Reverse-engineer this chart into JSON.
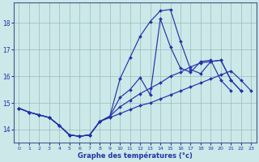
{
  "xlabel": "Graphe des températures (°c)",
  "bg_color": "#cce8e8",
  "grid_color": "#99bbbb",
  "line_color": "#2233aa",
  "xlim": [
    -0.5,
    23.5
  ],
  "ylim": [
    13.5,
    18.75
  ],
  "yticks": [
    14,
    15,
    16,
    17,
    18
  ],
  "xticks": [
    0,
    1,
    2,
    3,
    4,
    5,
    6,
    7,
    8,
    9,
    10,
    11,
    12,
    13,
    14,
    15,
    16,
    17,
    18,
    19,
    20,
    21,
    22,
    23
  ],
  "line1": [
    14.8,
    14.65,
    14.55,
    14.45,
    14.15,
    13.8,
    13.75,
    13.8,
    14.3,
    14.5,
    15.9,
    16.7,
    17.5,
    18.05,
    18.45,
    18.5,
    17.3,
    16.25,
    16.1,
    16.55,
    16.6,
    15.85,
    15.45,
    null
  ],
  "line2": [
    14.8,
    14.65,
    14.55,
    14.45,
    14.15,
    13.8,
    13.75,
    13.8,
    14.3,
    14.5,
    15.2,
    15.5,
    15.95,
    15.3,
    18.15,
    17.1,
    16.3,
    16.15,
    16.55,
    16.6,
    15.85,
    15.45,
    null,
    null
  ],
  "line3": [
    14.8,
    14.65,
    14.55,
    14.45,
    14.15,
    13.8,
    13.75,
    13.8,
    14.3,
    14.5,
    14.85,
    15.1,
    15.35,
    15.55,
    15.75,
    16.0,
    16.15,
    16.35,
    16.5,
    16.55,
    16.6,
    15.85,
    15.45,
    null
  ],
  "line4": [
    14.8,
    14.65,
    14.55,
    14.45,
    14.15,
    13.8,
    13.75,
    13.8,
    14.3,
    14.45,
    14.6,
    14.75,
    14.9,
    15.0,
    15.15,
    15.3,
    15.45,
    15.6,
    15.75,
    15.9,
    16.05,
    16.2,
    15.85,
    15.45
  ]
}
